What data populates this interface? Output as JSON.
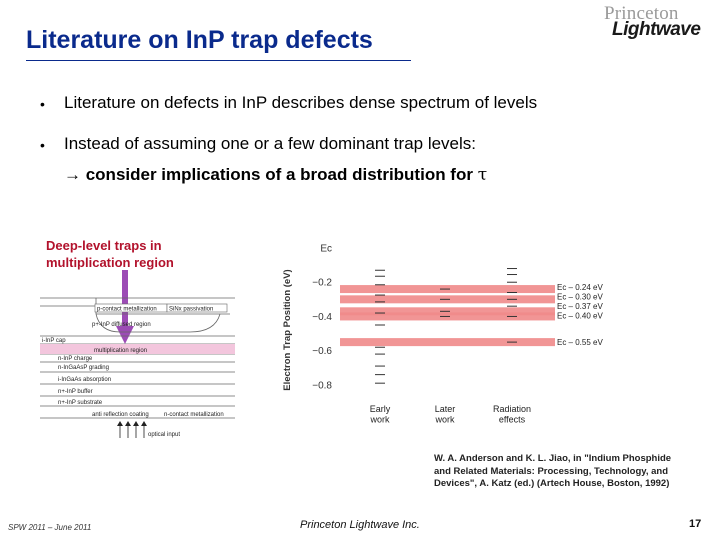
{
  "header": {
    "title": "Literature on InP trap defects",
    "logo_top": "Princeton",
    "logo_bottom": "Lightwave"
  },
  "bullets": {
    "b1": "Literature on defects in InP describes dense spectrum of levels",
    "b2": "Instead of assuming one or a few dominant trap levels:",
    "b3_text": "→ consider implications of a broad distribution for ",
    "b3_symbol": "τ"
  },
  "callout": {
    "line1": "Deep-level traps in",
    "line2": "multiplication region"
  },
  "device": {
    "layers": [
      "p-contact metallization",
      "SiNx passivation",
      "p+-InP diffused region",
      "i-InP cap",
      "multiplication region",
      "n-InP charge",
      "n-InGaAsP grading",
      "i-InGaAs absorption",
      "n+-InP buffer",
      "n+-InP substrate",
      "anti reflection coating",
      "n-contact metallization",
      "optical input"
    ]
  },
  "chart_data": {
    "type": "scatter",
    "ylabel": "Electron Trap Position (eV)",
    "y_ticks": [
      "Ec",
      "−0.2",
      "−0.4",
      "−0.6",
      "−0.8"
    ],
    "ylim": [
      -0.9,
      0.0
    ],
    "categories": [
      "Early\nwork",
      "Later\nwork",
      "Radiation\neffects"
    ],
    "category_labels": [
      [
        "Early",
        "work"
      ],
      [
        "Later",
        "work"
      ],
      [
        "Radiation",
        "effects"
      ]
    ],
    "series": [
      {
        "category": "Early work",
        "levels": [
          -0.13,
          -0.165,
          -0.215,
          -0.275,
          -0.315,
          -0.38,
          -0.45,
          -0.58,
          -0.62,
          -0.69,
          -0.74,
          -0.79
        ]
      },
      {
        "category": "Later work",
        "levels": [
          -0.24,
          -0.3,
          -0.37,
          -0.4
        ]
      },
      {
        "category": "Radiation effects",
        "levels": [
          -0.12,
          -0.155,
          -0.2,
          -0.26,
          -0.3,
          -0.34,
          -0.4,
          -0.55
        ]
      }
    ],
    "highlight_bands": [
      {
        "label": "Ec – 0.24 eV",
        "value": -0.24
      },
      {
        "label": "Ec – 0.30 eV",
        "value": -0.3
      },
      {
        "label": "Ec – 0.37 eV",
        "value": -0.37
      },
      {
        "label": "Ec – 0.40 eV",
        "value": -0.4
      },
      {
        "label": "Ec – 0.55 eV",
        "value": -0.55
      }
    ],
    "band_color": "#f08a8a"
  },
  "citation": {
    "line1": "W. A. Anderson and K. L. Jiao, in \"Indium Phosphide",
    "line2": "and Related Materials:  Processing, Technology, and",
    "line3": "Devices\", A. Katz (ed.) (Artech House, Boston, 1992)"
  },
  "footer": {
    "left": "SPW 2011 – June 2011",
    "middle": "Princeton Lightwave Inc.",
    "page": "17"
  },
  "colors": {
    "title": "#0a2a8c",
    "callout": "#b2122c",
    "arrow": "#9c4cb5"
  }
}
